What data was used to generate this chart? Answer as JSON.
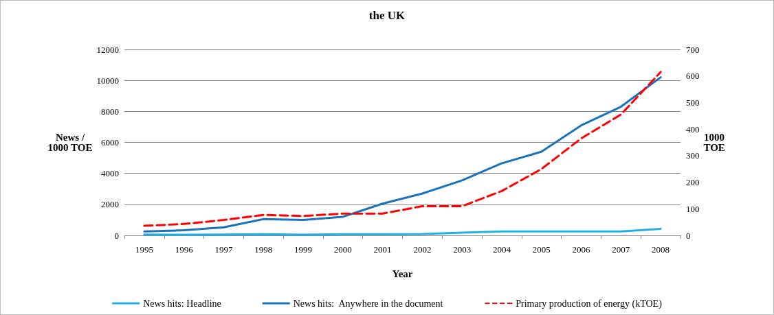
{
  "chart_data": {
    "type": "line",
    "title": "the UK",
    "xlabel": "Year",
    "ylabel": "News /\n1000 TOE",
    "y2label": "1000\nTOE",
    "categories": [
      "1995",
      "1996",
      "1997",
      "1998",
      "1999",
      "2000",
      "2001",
      "2002",
      "2003",
      "2004",
      "2005",
      "2006",
      "2007",
      "2008"
    ],
    "series": [
      {
        "name": "News hits: Headline",
        "color": "#1fb0e8",
        "values": [
          50,
          40,
          50,
          80,
          40,
          80,
          80,
          90,
          180,
          250,
          250,
          250,
          250,
          420
        ]
      },
      {
        "name": "News hits:  Anywhere in the document",
        "color": "#1a72bc",
        "values": [
          250,
          330,
          520,
          1050,
          1000,
          1200,
          2050,
          2700,
          3550,
          4650,
          5400,
          7100,
          8300,
          10200
        ]
      },
      {
        "name": "Primary production of energy (kTOE)",
        "color": "#ff0000",
        "axis": "y2",
        "line_style": "dashed",
        "values": [
          36,
          43,
          58,
          77,
          73,
          82,
          82,
          110,
          110,
          167,
          250,
          365,
          455,
          615
        ]
      }
    ],
    "ylim": [
      0,
      12000
    ],
    "yticks": [
      0,
      2000,
      4000,
      6000,
      8000,
      10000,
      12000
    ],
    "y2lim": [
      0,
      700
    ],
    "y2ticks": [
      0,
      100,
      200,
      300,
      400,
      500,
      600,
      700
    ],
    "grid": "y",
    "legend": "bottom",
    "marker": "none"
  }
}
